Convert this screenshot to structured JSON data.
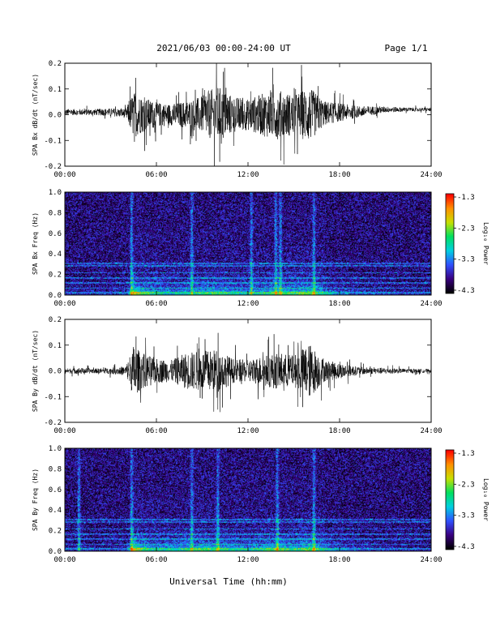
{
  "header": {
    "date_range": "2021/06/03  00:00-24:00 UT",
    "page_label": "Page 1/1"
  },
  "x_axis": {
    "label": "Universal Time (hh:mm)",
    "ticks": [
      "00:00",
      "06:00",
      "12:00",
      "18:00",
      "24:00"
    ]
  },
  "colorbar": {
    "label": "Log₁₀ Power",
    "ticks": [
      "-1.3",
      "-2.3",
      "-3.3",
      "-4.3"
    ],
    "range": [
      -4.3,
      -1.3
    ],
    "colors": [
      "#000000",
      "#3a0080",
      "#3050ff",
      "#00d0e0",
      "#00e060",
      "#c8e000",
      "#ff9000",
      "#ff0000"
    ]
  },
  "chart_data": [
    {
      "type": "line",
      "title": "",
      "ylabel": "SPA Bx dB/dt (nT/sec)",
      "xlabel": "",
      "xlim": [
        0,
        24
      ],
      "ylim": [
        -0.2,
        0.2
      ],
      "yticks": [
        "0.2",
        "0.1",
        "0.0",
        "-0.1",
        "-0.2"
      ],
      "grid": false,
      "series": [
        {
          "x": [
            0,
            1,
            2,
            3,
            4,
            4.5,
            5,
            6,
            7,
            8,
            9,
            10,
            11,
            12,
            13,
            14,
            15,
            16,
            17,
            18,
            19,
            20,
            21,
            22,
            23,
            24
          ],
          "amplitude": [
            0.02,
            0.02,
            0.02,
            0.025,
            0.03,
            0.15,
            0.12,
            0.08,
            0.07,
            0.09,
            0.12,
            0.19,
            0.12,
            0.1,
            0.14,
            0.16,
            0.13,
            0.18,
            0.08,
            0.06,
            0.04,
            0.03,
            0.02,
            0.015,
            0.012,
            0.012
          ],
          "offset": [
            0.01,
            0.01,
            0.01,
            0.01,
            0.005,
            0,
            0,
            0,
            0,
            0,
            0,
            0,
            0,
            0,
            0,
            0,
            0,
            0,
            0.005,
            0.01,
            0.01,
            0.015,
            0.02,
            0.02,
            0.02,
            0.02
          ]
        }
      ]
    },
    {
      "type": "heatmap",
      "title": "",
      "ylabel": "SPA Bx Freq (Hz)",
      "xlabel": "",
      "xlim": [
        0,
        24
      ],
      "ylim": [
        0,
        1.0
      ],
      "yticks": [
        "1.0",
        "0.8",
        "0.6",
        "0.4",
        "0.2",
        "0.0"
      ],
      "zlim": [
        -4.3,
        -1.3
      ],
      "base_power": -3.9,
      "low_freq_enhancement": [
        0.2,
        0.2,
        0.2,
        0.2,
        0.3,
        1.6,
        1.2,
        0.9,
        0.7,
        0.8,
        1.0,
        1.1,
        0.9,
        0.8,
        0.9,
        1.2,
        1.1,
        1.3,
        0.9,
        0.6,
        0.4,
        0.3,
        0.25,
        0.2,
        0.2,
        0.2
      ],
      "bands_hz": [
        0.03,
        0.07,
        0.12,
        0.17,
        0.22,
        0.29,
        0.31
      ],
      "bursts_hr": [
        4.35,
        8.3,
        12.2,
        13.8,
        14.1,
        16.3
      ]
    },
    {
      "type": "line",
      "title": "",
      "ylabel": "SPA By dB/dt (nT/sec)",
      "xlabel": "",
      "xlim": [
        0,
        24
      ],
      "ylim": [
        -0.2,
        0.2
      ],
      "yticks": [
        "0.2",
        "0.1",
        "0.0",
        "-0.1",
        "-0.2"
      ],
      "grid": false,
      "series": [
        {
          "x": [
            0,
            1,
            2,
            3,
            4,
            4.5,
            5,
            6,
            7,
            8,
            9,
            10,
            11,
            12,
            13,
            14,
            15,
            16,
            17,
            18,
            19,
            20,
            21,
            22,
            23,
            24
          ],
          "amplitude": [
            0.015,
            0.02,
            0.015,
            0.02,
            0.03,
            0.17,
            0.12,
            0.08,
            0.07,
            0.12,
            0.13,
            0.14,
            0.08,
            0.07,
            0.1,
            0.12,
            0.1,
            0.18,
            0.07,
            0.05,
            0.03,
            0.02,
            0.02,
            0.015,
            0.012,
            0.012
          ],
          "offset": [
            0,
            0,
            0,
            0,
            0,
            0,
            0,
            0,
            0,
            0,
            0,
            0,
            0,
            0,
            0,
            0,
            0,
            0,
            0,
            0,
            0,
            0,
            0,
            0,
            0,
            0
          ]
        }
      ]
    },
    {
      "type": "heatmap",
      "title": "",
      "ylabel": "SPA By Freq (Hz)",
      "xlabel": "",
      "xlim": [
        0,
        24
      ],
      "ylim": [
        0,
        1.0
      ],
      "yticks": [
        "1.0",
        "0.8",
        "0.6",
        "0.4",
        "0.2",
        "0.0"
      ],
      "zlim": [
        -4.3,
        -1.3
      ],
      "base_power": -3.9,
      "low_freq_enhancement": [
        0.2,
        0.3,
        0.2,
        0.2,
        0.3,
        1.7,
        1.2,
        0.9,
        0.8,
        1.0,
        1.1,
        1.0,
        0.9,
        0.8,
        1.0,
        1.2,
        1.0,
        1.3,
        0.9,
        0.6,
        0.4,
        0.3,
        0.25,
        0.2,
        0.2,
        0.2
      ],
      "bands_hz": [
        0.03,
        0.07,
        0.12,
        0.17,
        0.22,
        0.29,
        0.31
      ],
      "bursts_hr": [
        0.9,
        4.35,
        8.3,
        10.0,
        13.9,
        16.3
      ]
    }
  ]
}
